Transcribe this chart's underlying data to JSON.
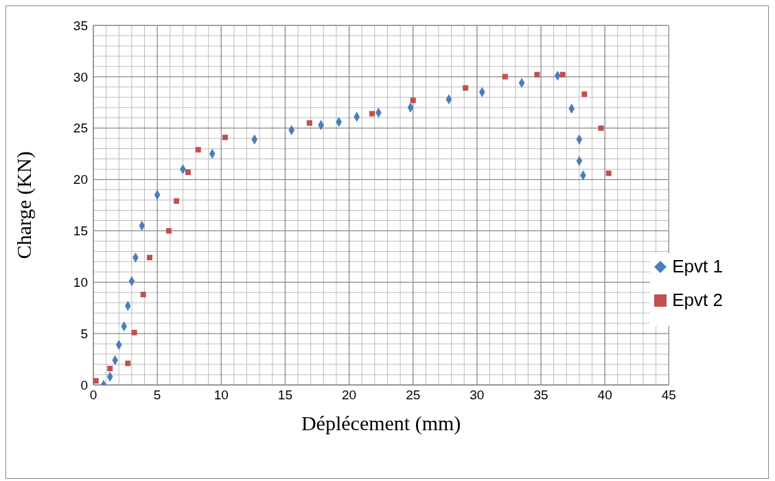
{
  "chart_data": {
    "type": "scatter",
    "xlabel": "Déplécement (mm)",
    "ylabel": "Charge (KN)",
    "xlim": [
      0,
      45
    ],
    "xticks": [
      0,
      5,
      10,
      15,
      20,
      25,
      30,
      35,
      40,
      45
    ],
    "ylim": [
      0,
      35
    ],
    "yticks": [
      0,
      5,
      10,
      15,
      20,
      25,
      30,
      35
    ],
    "grid": true,
    "legend": "right",
    "series": [
      {
        "name": "Epvt 1",
        "color": "#4a7ebb",
        "marker": "diamond",
        "x": [
          0.8,
          1.3,
          1.7,
          2.0,
          2.4,
          2.7,
          3.0,
          3.3,
          3.8,
          5.0,
          7.0,
          9.3,
          12.6,
          15.5,
          17.8,
          19.2,
          20.6,
          22.3,
          24.8,
          27.8,
          30.4,
          33.5,
          36.3,
          37.4,
          38.0,
          38.0,
          38.3
        ],
        "values": [
          0.0,
          0.8,
          2.4,
          3.9,
          5.7,
          7.7,
          10.1,
          12.4,
          15.5,
          18.5,
          21.0,
          22.5,
          23.9,
          24.8,
          25.3,
          25.6,
          26.1,
          26.5,
          27.0,
          27.8,
          28.5,
          29.4,
          30.1,
          26.9,
          23.9,
          21.8,
          20.4
        ]
      },
      {
        "name": "Epvt 2",
        "color": "#c0504d",
        "marker": "square",
        "x": [
          0.2,
          1.3,
          2.7,
          3.2,
          3.9,
          4.4,
          5.9,
          6.5,
          7.4,
          8.2,
          10.3,
          16.9,
          21.8,
          25.0,
          29.1,
          32.2,
          34.7,
          36.7,
          38.4,
          39.7,
          40.3
        ],
        "values": [
          0.4,
          1.6,
          2.1,
          5.1,
          8.8,
          12.4,
          15.0,
          17.9,
          20.7,
          22.9,
          24.1,
          25.5,
          26.4,
          27.7,
          28.9,
          30.0,
          30.2,
          30.2,
          28.3,
          25.0,
          20.6
        ]
      }
    ]
  }
}
